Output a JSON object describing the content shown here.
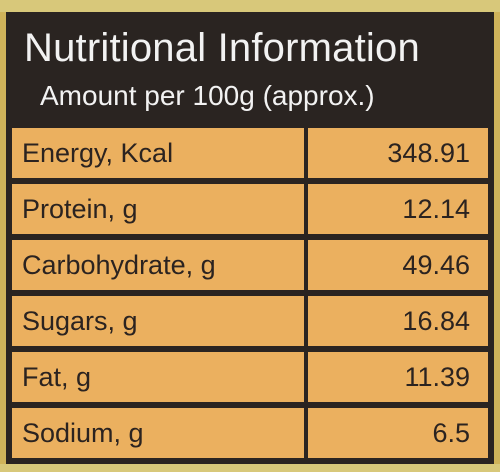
{
  "header": {
    "title": "Nutritional Information",
    "subtitle": "Amount per 100g (approx.)"
  },
  "rows": [
    {
      "name": "Energy, Kcal",
      "value": "348.91"
    },
    {
      "name": "Protein, g",
      "value": "12.14"
    },
    {
      "name": "Carbohydrate, g",
      "value": "49.46"
    },
    {
      "name": "Sugars, g",
      "value": "16.84"
    },
    {
      "name": "Fat, g",
      "value": "11.39"
    },
    {
      "name": "Sodium, g",
      "value": "6.5"
    }
  ],
  "colors": {
    "header_background": "#2a2421",
    "cell_background": "#ebb05f",
    "text_dark": "#2b2320",
    "text_light": "#f2f2f2"
  }
}
